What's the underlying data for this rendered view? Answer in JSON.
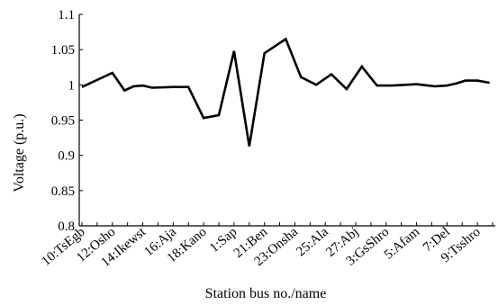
{
  "chart_data": {
    "type": "line",
    "xlabel": "Station bus no./name",
    "ylabel": "Voltage (p.u.)",
    "ylim": [
      0.8,
      1.1
    ],
    "yticks": [
      "0.8",
      "0.85",
      "0.9",
      "0.95",
      "1",
      "1.05",
      "1.1"
    ],
    "xtick_labels": [
      "10:TsEgb",
      "12:Osho",
      "14:Ikewst",
      "16:Aja",
      "18:Kano",
      "1:Sap",
      "21:Ben",
      "23:Onsha",
      "25:Ala",
      "27:Abj",
      "3:GsShro",
      "5:Afam",
      "7:Del",
      "9:Tsshro"
    ],
    "grid": false,
    "line_color": "#000000",
    "series": [
      {
        "points": [
          [
            0,
            0.997
          ],
          [
            1,
            1.017
          ],
          [
            1.4,
            0.992
          ],
          [
            1.7,
            0.998
          ],
          [
            2,
            0.999
          ],
          [
            2.3,
            0.996
          ],
          [
            3,
            0.997
          ],
          [
            3.5,
            0.997
          ],
          [
            4,
            0.953
          ],
          [
            4.5,
            0.957
          ],
          [
            5,
            1.048
          ],
          [
            5.5,
            0.913
          ],
          [
            6,
            1.045
          ],
          [
            6.7,
            1.065
          ],
          [
            7.2,
            1.011
          ],
          [
            7.7,
            1.0
          ],
          [
            8.2,
            1.015
          ],
          [
            8.7,
            0.994
          ],
          [
            9.2,
            1.026
          ],
          [
            9.7,
            0.999
          ],
          [
            10.2,
            0.999
          ],
          [
            11,
            1.001
          ],
          [
            11.6,
            0.998
          ],
          [
            12,
            0.999
          ],
          [
            12.3,
            1.002
          ],
          [
            12.6,
            1.006
          ],
          [
            13,
            1.006
          ],
          [
            13.4,
            1.003
          ]
        ]
      }
    ]
  }
}
